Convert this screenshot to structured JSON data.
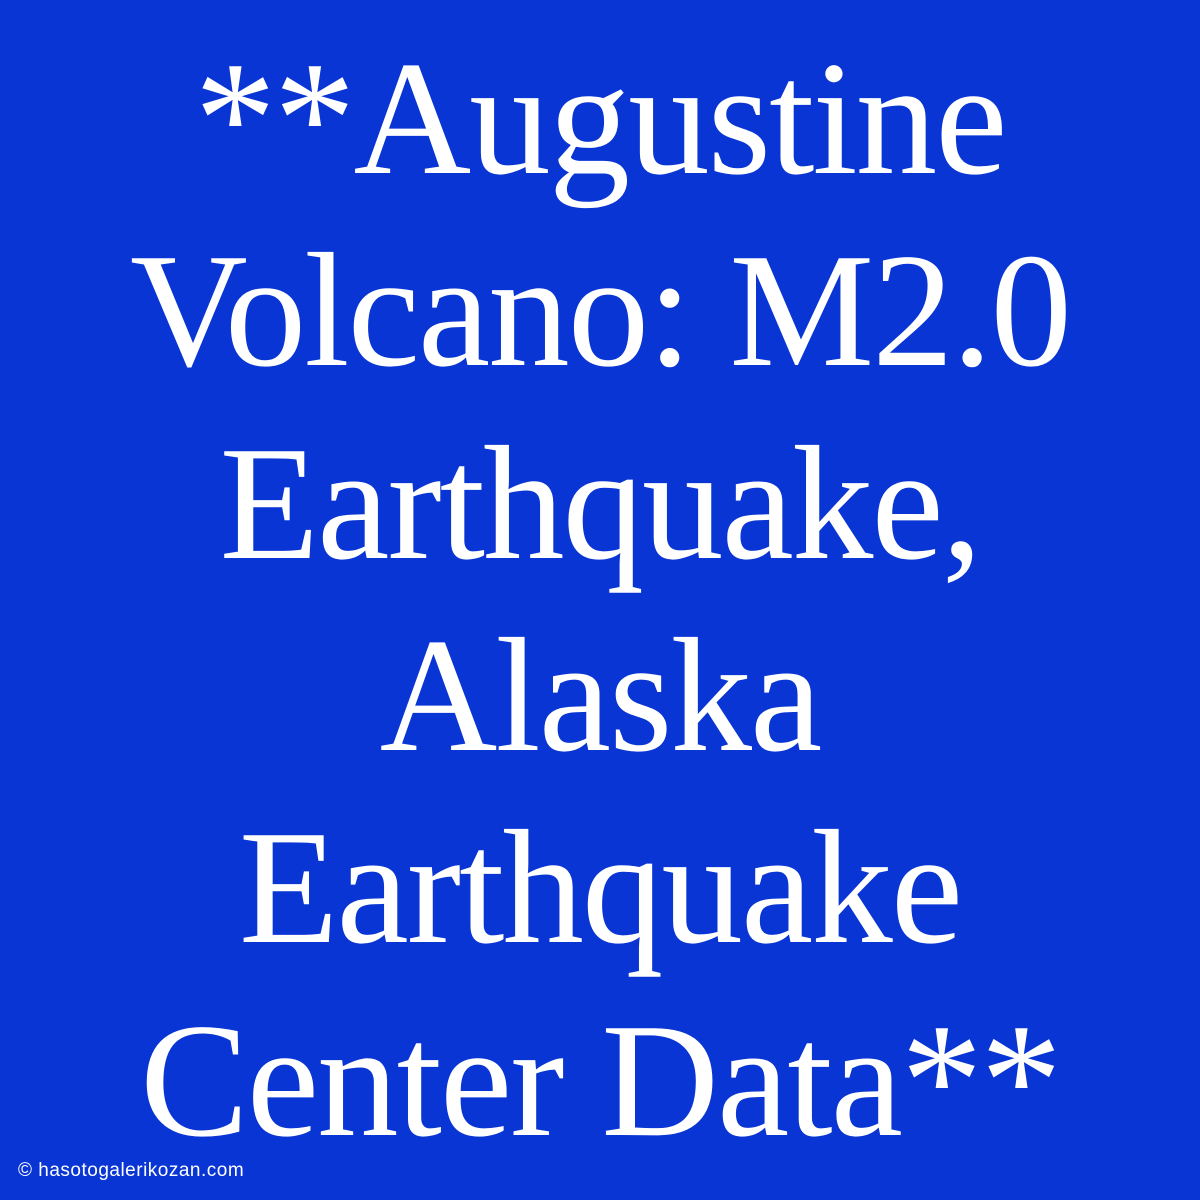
{
  "card": {
    "text": "**Augustine Volcano: M2.0 Earthquake, Alaska Earthquake Center Data**",
    "background_color": "#0935d4",
    "text_color": "#ffffff",
    "font_size": 163,
    "font_family": "serif",
    "line_height": 1.18
  },
  "watermark": {
    "text": "© hasotogalerikozan.com",
    "font_size": 19,
    "text_color": "#ffffff"
  }
}
